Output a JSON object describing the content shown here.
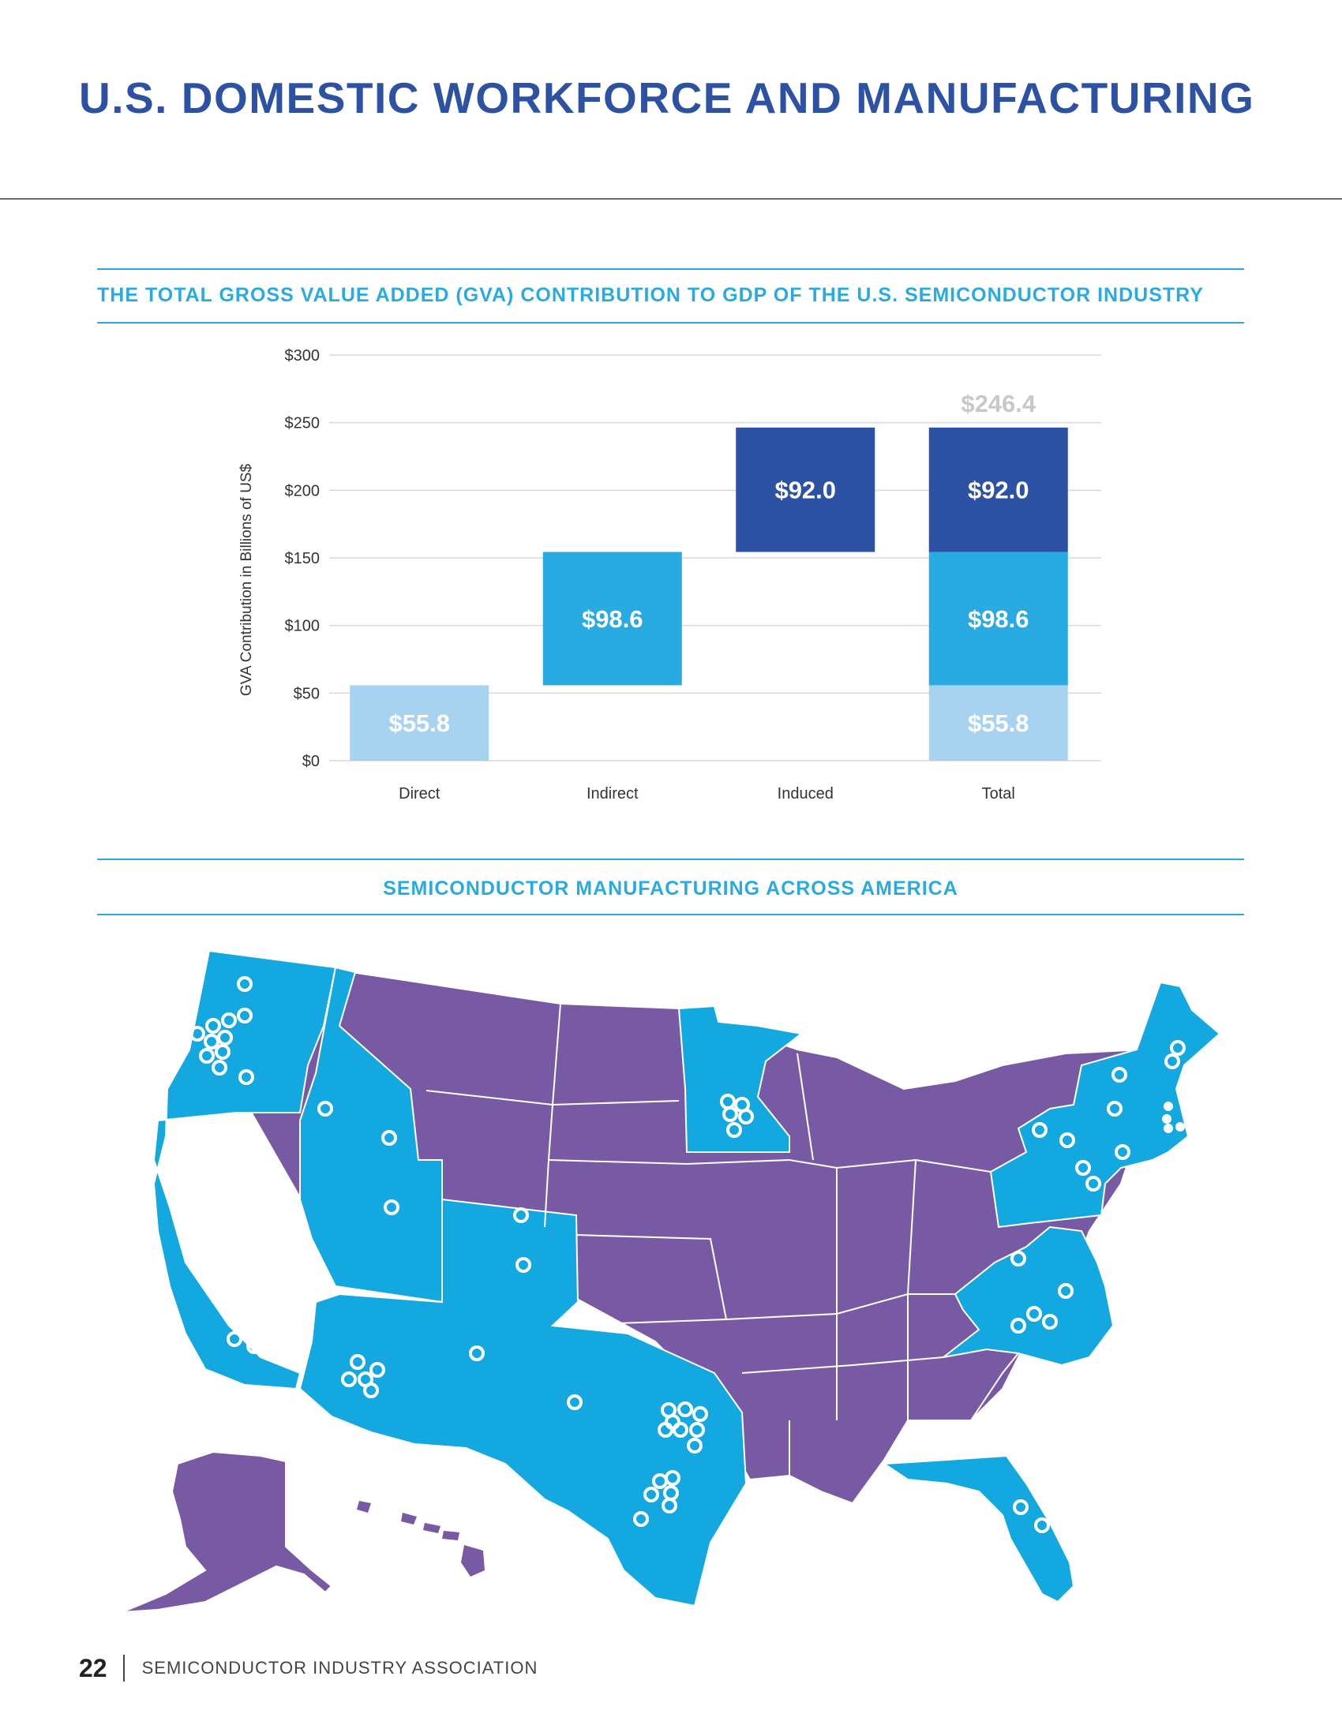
{
  "page": {
    "title": "U.S. DOMESTIC WORKFORCE AND MANUFACTURING",
    "page_number": "22",
    "organization": "SEMICONDUCTOR INDUSTRY ASSOCIATION"
  },
  "colors": {
    "title_blue": "#2e52a3",
    "section_blue": "#29abe2",
    "direct": "#a8d3f0",
    "indirect": "#29abe2",
    "induced": "#2e52a3",
    "total_label": "#c8c8c8",
    "map_semiconductor_state": "#14a8e0",
    "map_other_state": "#785aa4"
  },
  "chart_data": {
    "type": "bar",
    "subtype": "waterfall-stacked",
    "title": "THE TOTAL GROSS VALUE ADDED (GVA) CONTRIBUTION TO GDP OF THE U.S. SEMICONDUCTOR INDUSTRY",
    "xlabel": "",
    "ylabel": "GVA Contribution in Billions of US$",
    "ylim": [
      0,
      300
    ],
    "yticks": [
      0,
      50,
      100,
      150,
      200,
      250,
      300
    ],
    "ytick_labels": [
      "$0",
      "$50",
      "$100",
      "$150",
      "$200",
      "$250",
      "$300"
    ],
    "categories": [
      "Direct",
      "Indirect",
      "Induced",
      "Total"
    ],
    "series": [
      {
        "name": "Direct",
        "color": "#a8d3f0",
        "values": [
          55.8,
          null,
          null,
          55.8
        ],
        "labels": [
          "$55.8",
          null,
          null,
          "$55.8"
        ]
      },
      {
        "name": "Indirect",
        "color": "#29abe2",
        "values": [
          null,
          98.6,
          null,
          98.6
        ],
        "labels": [
          null,
          "$98.6",
          null,
          "$98.6"
        ]
      },
      {
        "name": "Induced",
        "color": "#2e52a3",
        "values": [
          null,
          null,
          92.0,
          92.0
        ],
        "labels": [
          null,
          null,
          "$92.0",
          "$92.0"
        ]
      }
    ],
    "total_value": 246.4,
    "total_label": "$246.4",
    "grid": true
  },
  "map": {
    "title": "SEMICONDUCTOR MANUFACTURING ACROSS AMERICA",
    "description_legend": "Blue states have semiconductor manufacturing facilities; white circles mark facility locations"
  }
}
